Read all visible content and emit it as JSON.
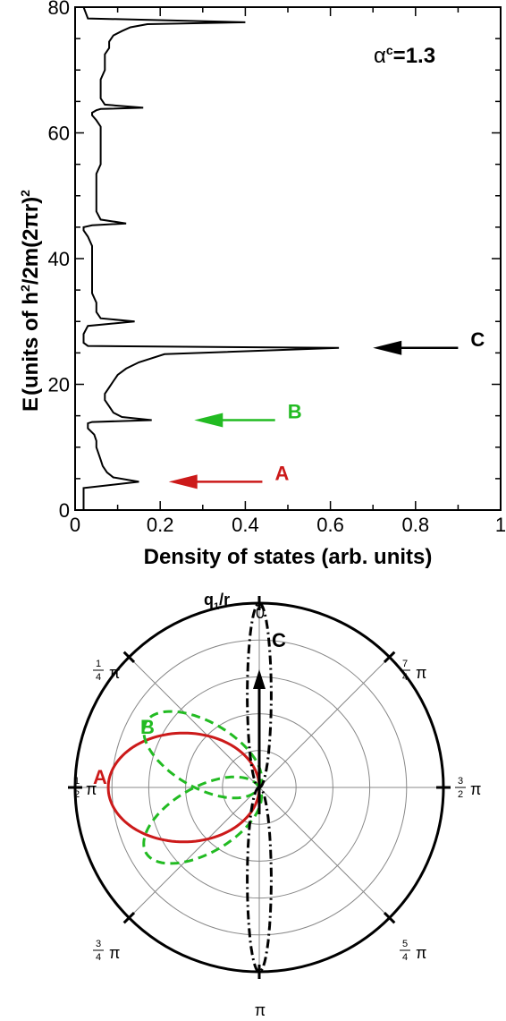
{
  "chart_data": [
    {
      "type": "line",
      "orientation": "horizontal-density",
      "xlabel": "Density of states (arb. units)",
      "ylabel": "E (units of h^2/2m(2πr)^2)",
      "ylabel_parts": {
        "e": "E",
        "rest": "(units of h",
        "sq1": "2",
        "mid": "/2m(2πr)",
        "sq2": "2"
      },
      "xlim": [
        0,
        1
      ],
      "ylim": [
        0,
        80
      ],
      "xticks": [
        "0",
        "0.2",
        "0.4",
        "0.6",
        "0.8",
        "1"
      ],
      "yticks": [
        "0",
        "20",
        "40",
        "60",
        "80"
      ],
      "annotation_parts": {
        "alpha": "α",
        "sup": "c",
        "rest": "=1.3"
      },
      "annotation": "αc=1.3",
      "arrows": [
        {
          "label": "A",
          "energy": 4.5,
          "x_from": 0.44,
          "x_to": 0.22,
          "color": "#cc1a1a"
        },
        {
          "label": "B",
          "energy": 14.3,
          "x_from": 0.47,
          "x_to": 0.28,
          "color": "#22bb22"
        },
        {
          "label": "C",
          "energy": 25.8,
          "x_from": 0.9,
          "x_to": 0.7,
          "color": "#000000"
        }
      ],
      "series": [
        {
          "x": [
            0.02,
            0.02,
            0.15,
            0.09,
            0.075,
            0.065,
            0.06,
            0.055,
            0.05,
            0.05,
            0.045,
            0.03,
            0.03,
            0.03,
            0.03,
            0.04,
            0.18,
            0.11,
            0.09,
            0.08,
            0.07,
            0.07,
            0.08,
            0.09,
            0.1,
            0.12,
            0.15,
            0.21,
            0.62,
            0.03,
            0.02,
            0.02,
            0.03,
            0.14,
            0.06,
            0.05,
            0.05,
            0.04,
            0.04,
            0.04,
            0.04,
            0.04,
            0.04,
            0.03,
            0.02,
            0.02,
            0.04,
            0.12,
            0.06,
            0.05,
            0.05,
            0.05,
            0.05,
            0.05,
            0.06,
            0.06,
            0.06,
            0.06,
            0.06,
            0.05,
            0.04,
            0.04,
            0.05,
            0.06,
            0.16,
            0.07,
            0.06,
            0.06,
            0.06,
            0.07,
            0.07,
            0.07,
            0.08,
            0.08,
            0.09,
            0.11,
            0.13,
            0.17,
            0.4,
            0.03,
            0.02
          ],
          "y": [
            0,
            3.5,
            4.5,
            5.2,
            6,
            7,
            8,
            9,
            10,
            11,
            12,
            13,
            13.3,
            13.6,
            13.8,
            14.0,
            14.3,
            14.8,
            15.5,
            16.5,
            17.5,
            18.5,
            19.5,
            20.5,
            21.5,
            22.5,
            23.5,
            24.8,
            25.8,
            26.1,
            26.6,
            28,
            29.3,
            30.0,
            30.5,
            31.5,
            33,
            34.5,
            36,
            37.5,
            39,
            40.5,
            42,
            43.5,
            44.5,
            45,
            45.3,
            45.6,
            46.2,
            47.5,
            49,
            50.5,
            52,
            53.5,
            55,
            56.5,
            58,
            59.5,
            61,
            62,
            62.8,
            63.2,
            63.6,
            63.8,
            64.0,
            64.5,
            65.5,
            67,
            68.5,
            70,
            71.5,
            72.5,
            73.5,
            74.5,
            75.5,
            76.2,
            76.8,
            77.3,
            77.6,
            78.2,
            80
          ]
        }
      ]
    },
    {
      "type": "polar",
      "title": "q1/r",
      "title_parts": {
        "q": "q",
        "sub": "1",
        "rest": "/r"
      },
      "angle_labels": {
        "top": "0",
        "bottom": "π",
        "upper_left": {
          "num": "1",
          "den": "4",
          "sym": "π"
        },
        "left": {
          "num": "1",
          "den": "2",
          "sym": "π"
        },
        "lower_left": {
          "num": "3",
          "den": "4",
          "sym": "π"
        },
        "upper_right": {
          "num": "7",
          "den": "4",
          "sym": "π"
        },
        "right": {
          "num": "3",
          "den": "2",
          "sym": "π"
        },
        "lower_right": {
          "num": "5",
          "den": "4",
          "sym": "π"
        }
      },
      "rings": 5,
      "series": [
        {
          "name": "A",
          "color": "#cc1a1a",
          "dash": "solid",
          "radius": 0.82,
          "lobe_angle_deg": 180,
          "width": 0.72
        },
        {
          "name": "B",
          "color": "#22bb22",
          "dash": "dashed",
          "radius": 0.71,
          "lobe_angle_deg": 150,
          "width": 0.5
        },
        {
          "name": "B",
          "color": "#22bb22",
          "dash": "dashed",
          "radius": 0.71,
          "lobe_angle_deg": 210,
          "width": 0.5
        },
        {
          "name": "C",
          "color": "#000000",
          "dash": "dashdot",
          "radius": 1.0,
          "lobe_angle_deg": 90,
          "width": 0.13
        },
        {
          "name": "C",
          "color": "#000000",
          "dash": "dashdot",
          "radius": 1.0,
          "lobe_angle_deg": 270,
          "width": 0.13
        }
      ],
      "labels": [
        {
          "text": "A",
          "color": "#cc1a1a"
        },
        {
          "text": "B",
          "color": "#22bb22"
        },
        {
          "text": "C",
          "color": "#000000"
        }
      ]
    }
  ]
}
